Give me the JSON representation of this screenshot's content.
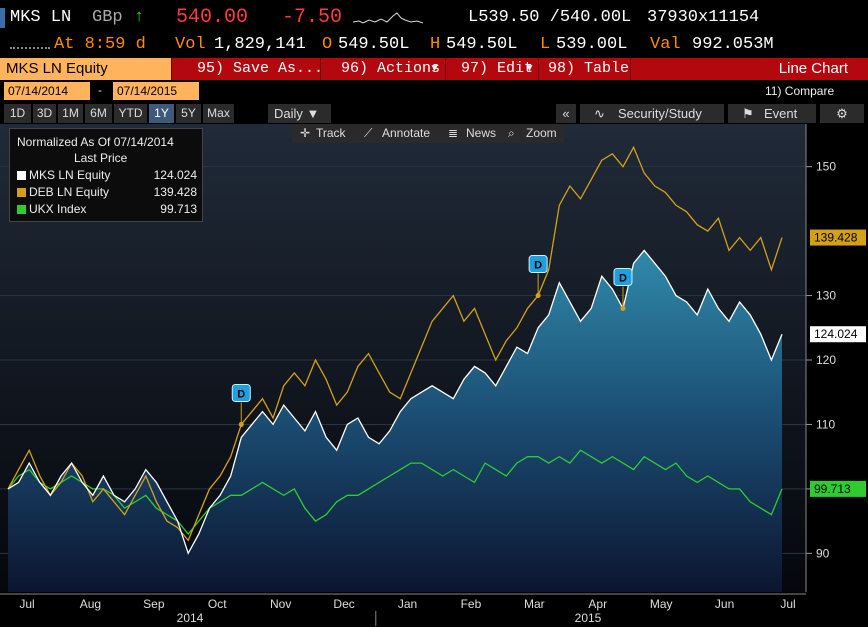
{
  "quote": {
    "ticker": "MKS LN",
    "currency": "GBp",
    "arrow": "↑",
    "last": "540.00",
    "change": "-7.50",
    "bid_ask": "L539.50 /540.00L",
    "size": "37930x11154",
    "time_label": "At 8:59 d",
    "vol_label": "Vol",
    "vol": "1,829,141",
    "open_label": "O",
    "open": "549.50L",
    "high_label": "H",
    "high": "549.50L",
    "low_label": "L",
    "low": "539.00L",
    "val_label": "Val",
    "val": "992.053M"
  },
  "fnbar": {
    "ticker": "MKS LN Equity",
    "save": "95) Save As...",
    "actions": "96) Actions",
    "edit": "97) Edit",
    "table": "98) Table",
    "chart_type": "Line Chart"
  },
  "dates": {
    "start": "07/14/2014",
    "dash": "-",
    "end": "07/14/2015",
    "compare": "11) Compare"
  },
  "periods": [
    "1D",
    "3D",
    "1M",
    "6M",
    "YTD",
    "1Y",
    "5Y",
    "Max"
  ],
  "active_period": "1Y",
  "frequency": "Daily ▼",
  "toolbar": {
    "collapse": "«",
    "security": "Security/Study",
    "event": "Event",
    "settings": "⚙"
  },
  "chart_tools": {
    "track": "Track",
    "annotate": "Annotate",
    "news": "News",
    "zoom": "Zoom"
  },
  "legend": {
    "title": "Normalized As Of 07/14/2014",
    "subtitle": "Last Price",
    "items": [
      {
        "name": "MKS LN Equity",
        "value": "124.024",
        "color": "#ffffff"
      },
      {
        "name": "DEB LN Equity",
        "value": "139.428",
        "color": "#d4a017"
      },
      {
        "name": "UKX Index",
        "value": "99.713",
        "color": "#2ecc2e"
      }
    ]
  },
  "chart_data": {
    "type": "line",
    "ylim": [
      84,
      156
    ],
    "yticks": [
      "90",
      "100",
      "110",
      "120",
      "130",
      "150"
    ],
    "xticks": [
      "Jul",
      "Aug",
      "Sep",
      "Oct",
      "Nov",
      "Dec",
      "Jan",
      "Feb",
      "Mar",
      "Apr",
      "May",
      "Jun",
      "Jul"
    ],
    "year_labels": [
      "2014",
      "2015"
    ],
    "end_labels": [
      "139.428",
      "124.024",
      "99.713"
    ],
    "dividend_marker": "D",
    "series": [
      {
        "name": "MKS LN Equity",
        "color": "#ffffff",
        "values": [
          100,
          101,
          104,
          101,
          99,
          102,
          104,
          101,
          99,
          102,
          99,
          98,
          100,
          103,
          101,
          98,
          95,
          90,
          93,
          97,
          99,
          102,
          108,
          110,
          112,
          110,
          113,
          111,
          109,
          112,
          108,
          106,
          110,
          111,
          108,
          107,
          109,
          112,
          114,
          115,
          116,
          115,
          114,
          117,
          119,
          118,
          116,
          119,
          122,
          121,
          125,
          127,
          132,
          129,
          126,
          128,
          133,
          131,
          128,
          135,
          137,
          135,
          133,
          130,
          129,
          127,
          131,
          128,
          126,
          129,
          127,
          124,
          120,
          124
        ]
      },
      {
        "name": "DEB LN Equity",
        "color": "#d4a017",
        "values": [
          100,
          103,
          106,
          102,
          99,
          101,
          104,
          102,
          98,
          100,
          98,
          96,
          99,
          102,
          98,
          95,
          94,
          92,
          96,
          100,
          102,
          105,
          110,
          112,
          114,
          111,
          116,
          118,
          116,
          120,
          117,
          113,
          115,
          119,
          121,
          118,
          115,
          114,
          118,
          122,
          126,
          128,
          130,
          126,
          128,
          124,
          120,
          123,
          125,
          128,
          130,
          134,
          144,
          147,
          145,
          148,
          151,
          152,
          150,
          153,
          149,
          147,
          146,
          144,
          143,
          141,
          140,
          142,
          137,
          139,
          137,
          139,
          134,
          139
        ]
      },
      {
        "name": "UKX Index",
        "color": "#2ecc2e",
        "values": [
          100,
          102,
          103,
          101,
          100,
          101,
          102,
          101,
          100,
          100,
          99,
          97,
          98,
          99,
          97,
          96,
          95,
          93,
          95,
          97,
          98,
          99,
          99,
          100,
          101,
          100,
          99,
          100,
          97,
          95,
          96,
          98,
          99,
          99,
          100,
          101,
          102,
          103,
          104,
          104,
          103,
          102,
          103,
          102,
          101,
          104,
          103,
          102,
          104,
          105,
          105,
          104,
          105,
          104,
          106,
          105,
          104,
          105,
          104,
          103,
          105,
          104,
          103,
          104,
          102,
          101,
          102,
          101,
          100,
          100,
          98,
          97,
          96,
          100
        ]
      }
    ]
  }
}
